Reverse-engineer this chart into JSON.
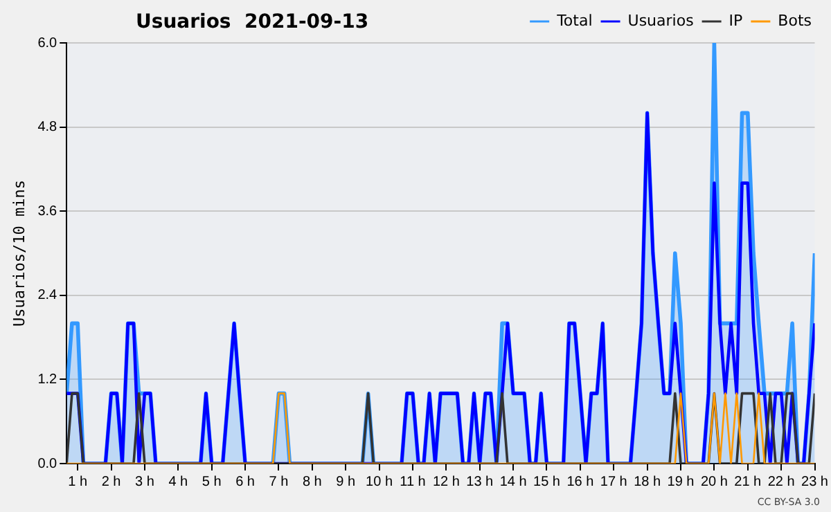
{
  "chart_data": {
    "type": "line",
    "title": "Usuarios  2021-09-13",
    "ylabel": "Usuarios/10 mins",
    "annotations": [
      "CC BY-SA 3.0"
    ],
    "x": [
      0.67,
      0.83,
      1,
      1.17,
      1.33,
      1.5,
      1.67,
      1.83,
      2,
      2.17,
      2.33,
      2.5,
      2.67,
      2.83,
      3,
      3.17,
      3.33,
      3.5,
      3.67,
      3.83,
      4,
      4.17,
      4.33,
      4.5,
      4.67,
      4.83,
      5,
      5.17,
      5.33,
      5.5,
      5.67,
      5.83,
      6,
      6.17,
      6.33,
      6.5,
      6.67,
      6.83,
      7,
      7.17,
      7.33,
      7.5,
      7.67,
      7.83,
      8,
      8.17,
      8.33,
      8.5,
      8.67,
      8.83,
      9,
      9.17,
      9.33,
      9.5,
      9.67,
      9.83,
      10,
      10.17,
      10.33,
      10.5,
      10.67,
      10.83,
      11,
      11.17,
      11.33,
      11.5,
      11.67,
      11.83,
      12,
      12.17,
      12.33,
      12.5,
      12.67,
      12.83,
      13,
      13.17,
      13.33,
      13.5,
      13.67,
      13.83,
      14,
      14.17,
      14.33,
      14.5,
      14.67,
      14.83,
      15,
      15.17,
      15.33,
      15.5,
      15.67,
      15.83,
      16,
      16.17,
      16.33,
      16.5,
      16.67,
      16.83,
      17,
      17.17,
      17.33,
      17.5,
      17.67,
      17.83,
      18,
      18.17,
      18.33,
      18.5,
      18.67,
      18.83,
      19,
      19.17,
      19.33,
      19.5,
      19.67,
      19.83,
      20,
      20.17,
      20.33,
      20.5,
      20.67,
      20.83,
      21,
      21.17,
      21.33,
      21.5,
      21.67,
      21.83,
      22,
      22.17,
      22.33,
      22.5,
      22.67,
      22.83,
      23
    ],
    "series": [
      {
        "name": "Total",
        "type": "area",
        "color": "#3399ff",
        "values": [
          1,
          2,
          2,
          0,
          0,
          0,
          0,
          0,
          1,
          1,
          0,
          2,
          2,
          1,
          1,
          1,
          0,
          0,
          0,
          0,
          0,
          0,
          0,
          0,
          0,
          1,
          0,
          0,
          0,
          1,
          2,
          1,
          0,
          0,
          0,
          0,
          0,
          0,
          1,
          1,
          0,
          0,
          0,
          0,
          0,
          0,
          0,
          0,
          0,
          0,
          0,
          0,
          0,
          0,
          1,
          0,
          0,
          0,
          0,
          0,
          0,
          1,
          1,
          0,
          0,
          1,
          0,
          1,
          1,
          1,
          1,
          0,
          0,
          1,
          0,
          1,
          1,
          0,
          2,
          2,
          1,
          1,
          1,
          0,
          0,
          1,
          0,
          0,
          0,
          0,
          2,
          2,
          1,
          0,
          1,
          1,
          2,
          0,
          0,
          0,
          0,
          0,
          1,
          2,
          5,
          3,
          2,
          1,
          1,
          3,
          2,
          0,
          0,
          0,
          0,
          1,
          6,
          2,
          2,
          2,
          2,
          5,
          5,
          3,
          2,
          1,
          1,
          1,
          1,
          1,
          2,
          0,
          0,
          1,
          3
        ]
      },
      {
        "name": "Usuarios",
        "color": "#0000ff",
        "values": [
          1,
          1,
          1,
          0,
          0,
          0,
          0,
          0,
          1,
          1,
          0,
          2,
          2,
          0,
          1,
          1,
          0,
          0,
          0,
          0,
          0,
          0,
          0,
          0,
          0,
          1,
          0,
          0,
          0,
          1,
          2,
          1,
          0,
          0,
          0,
          0,
          0,
          0,
          0,
          0,
          0,
          0,
          0,
          0,
          0,
          0,
          0,
          0,
          0,
          0,
          0,
          0,
          0,
          0,
          0,
          0,
          0,
          0,
          0,
          0,
          0,
          1,
          1,
          0,
          0,
          1,
          0,
          1,
          1,
          1,
          1,
          0,
          0,
          1,
          0,
          1,
          1,
          0,
          1,
          2,
          1,
          1,
          1,
          0,
          0,
          1,
          0,
          0,
          0,
          0,
          2,
          2,
          1,
          0,
          1,
          1,
          2,
          0,
          0,
          0,
          0,
          0,
          1,
          2,
          5,
          3,
          2,
          1,
          1,
          2,
          1,
          0,
          0,
          0,
          0,
          1,
          4,
          2,
          1,
          2,
          1,
          4,
          4,
          2,
          1,
          1,
          0,
          1,
          1,
          0,
          1,
          0,
          0,
          1,
          2
        ]
      },
      {
        "name": "IP",
        "color": "#333333",
        "values": [
          0,
          1,
          1,
          0,
          0,
          0,
          0,
          0,
          0,
          0,
          0,
          0,
          0,
          1,
          0,
          0,
          0,
          0,
          0,
          0,
          0,
          0,
          0,
          0,
          0,
          0,
          0,
          0,
          0,
          0,
          0,
          0,
          0,
          0,
          0,
          0,
          0,
          0,
          0,
          0,
          0,
          0,
          0,
          0,
          0,
          0,
          0,
          0,
          0,
          0,
          0,
          0,
          0,
          0,
          1,
          0,
          0,
          0,
          0,
          0,
          0,
          0,
          0,
          0,
          0,
          0,
          0,
          0,
          0,
          0,
          0,
          0,
          0,
          0,
          0,
          0,
          0,
          0,
          1,
          0,
          0,
          0,
          0,
          0,
          0,
          0,
          0,
          0,
          0,
          0,
          0,
          0,
          0,
          0,
          0,
          0,
          0,
          0,
          0,
          0,
          0,
          0,
          0,
          0,
          0,
          0,
          0,
          0,
          0,
          1,
          0,
          0,
          0,
          0,
          0,
          0,
          1,
          0,
          0,
          0,
          0,
          1,
          1,
          1,
          0,
          0,
          1,
          0,
          0,
          1,
          1,
          0,
          0,
          0,
          1
        ]
      },
      {
        "name": "Bots",
        "color": "#ff9900",
        "values": [
          0,
          0,
          0,
          0,
          0,
          0,
          0,
          0,
          0,
          0,
          0,
          0,
          0,
          0,
          0,
          0,
          0,
          0,
          0,
          0,
          0,
          0,
          0,
          0,
          0,
          0,
          0,
          0,
          0,
          0,
          0,
          0,
          0,
          0,
          0,
          0,
          0,
          0,
          1,
          1,
          0,
          0,
          0,
          0,
          0,
          0,
          0,
          0,
          0,
          0,
          0,
          0,
          0,
          0,
          0,
          0,
          0,
          0,
          0,
          0,
          0,
          0,
          0,
          0,
          0,
          0,
          0,
          0,
          0,
          0,
          0,
          0,
          0,
          0,
          0,
          0,
          0,
          0,
          0,
          0,
          0,
          0,
          0,
          0,
          0,
          0,
          0,
          0,
          0,
          0,
          0,
          0,
          0,
          0,
          0,
          0,
          0,
          0,
          0,
          0,
          0,
          0,
          0,
          0,
          0,
          0,
          0,
          0,
          0,
          0,
          1,
          0,
          0,
          0,
          0,
          0,
          1,
          0,
          1,
          0,
          1,
          0,
          0,
          0,
          1,
          0,
          0,
          0,
          0,
          0,
          0,
          0,
          0,
          0,
          0
        ]
      }
    ],
    "xlim": [
      0.67,
      23
    ],
    "xticks": [
      {
        "value": 1,
        "label": "1 h"
      },
      {
        "value": 2,
        "label": "2 h"
      },
      {
        "value": 3,
        "label": "3 h"
      },
      {
        "value": 4,
        "label": "4 h"
      },
      {
        "value": 5,
        "label": "5 h"
      },
      {
        "value": 6,
        "label": "6 h"
      },
      {
        "value": 7,
        "label": "7 h"
      },
      {
        "value": 8,
        "label": "8 h"
      },
      {
        "value": 9,
        "label": "9 h"
      },
      {
        "value": 10,
        "label": "10 h"
      },
      {
        "value": 11,
        "label": "11 h"
      },
      {
        "value": 12,
        "label": "12 h"
      },
      {
        "value": 13,
        "label": "13 h"
      },
      {
        "value": 14,
        "label": "14 h"
      },
      {
        "value": 15,
        "label": "15 h"
      },
      {
        "value": 16,
        "label": "16 h"
      },
      {
        "value": 17,
        "label": "17 h"
      },
      {
        "value": 18,
        "label": "18 h"
      },
      {
        "value": 19,
        "label": "19 h"
      },
      {
        "value": 20,
        "label": "20 h"
      },
      {
        "value": 21,
        "label": "21 h"
      },
      {
        "value": 22,
        "label": "22 h"
      },
      {
        "value": 23,
        "label": "23 h"
      }
    ],
    "ylim": [
      0,
      6
    ],
    "yticks": [
      {
        "value": 0,
        "label": "0.0"
      },
      {
        "value": 1.2,
        "label": "1.2"
      },
      {
        "value": 2.4,
        "label": "2.4"
      },
      {
        "value": 3.6,
        "label": "3.6"
      },
      {
        "value": 4.8,
        "label": "4.8"
      },
      {
        "value": 6,
        "label": "6.0"
      }
    ],
    "grid": "y",
    "legend": "top right",
    "line_style": "solid",
    "marker": "none"
  }
}
